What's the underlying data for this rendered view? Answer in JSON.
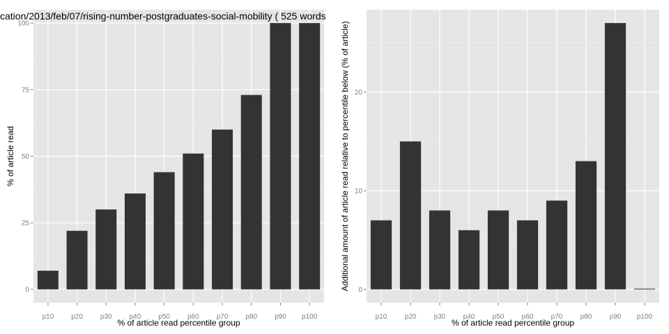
{
  "chart_data": [
    {
      "type": "bar",
      "title": "cation/2013/feb/07/rising-number-postgraduates-social-mobility ( 525 words",
      "xlabel": "% of article read percentile group",
      "ylabel": "% of article read",
      "categories": [
        "p10",
        "p20",
        "p30",
        "p40",
        "p50",
        "p60",
        "p70",
        "p80",
        "p90",
        "p100"
      ],
      "values": [
        7,
        22,
        30,
        36,
        44,
        51,
        60,
        73,
        100,
        100
      ],
      "ylim": [
        -5,
        105
      ],
      "yticks": [
        0,
        25,
        50,
        75,
        100
      ],
      "yticklabels": [
        "0",
        "25",
        "50",
        "75",
        "100"
      ],
      "grid": true,
      "bar_color": "#333333",
      "panel_color": "#e5e5e5"
    },
    {
      "type": "bar",
      "title": "",
      "xlabel": "% of article read percentile group",
      "ylabel": "Additional amount of article read relative to percentile below (% of article)",
      "categories": [
        "p10",
        "p20",
        "p30",
        "p40",
        "p50",
        "p60",
        "p70",
        "p80",
        "p90",
        "p100"
      ],
      "values": [
        7,
        15,
        8,
        6,
        8,
        7,
        9,
        13,
        27,
        0
      ],
      "ylim": [
        -1.35,
        28.35
      ],
      "yticks": [
        0,
        10,
        20
      ],
      "yticklabels": [
        "0",
        "10",
        "20"
      ],
      "grid": true,
      "bar_color": "#333333",
      "panel_color": "#e5e5e5"
    }
  ]
}
